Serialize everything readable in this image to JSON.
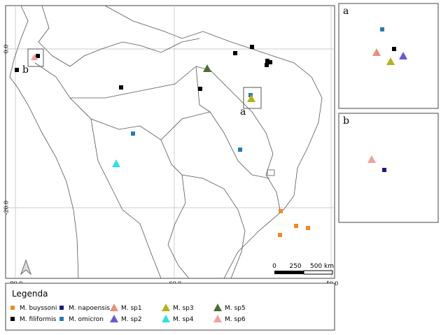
{
  "map": {
    "lat_labels": [
      "0.0",
      "-20.0"
    ],
    "lon_labels": [
      "-80.0",
      "-60.0",
      "-40.0"
    ],
    "marker_labels": [
      "a",
      "b"
    ],
    "scale_labels": [
      "0",
      "250",
      "500 km"
    ]
  },
  "insets": [
    "a",
    "b"
  ],
  "legend": {
    "title": "Legenda",
    "items": [
      "M. buyssoni",
      "M. filiformis",
      "M. napoensis",
      "M. omicron",
      "M. sp1",
      "M. sp2",
      "M. sp3",
      "M. sp4",
      "M. sp5",
      "M. sp6"
    ]
  }
}
